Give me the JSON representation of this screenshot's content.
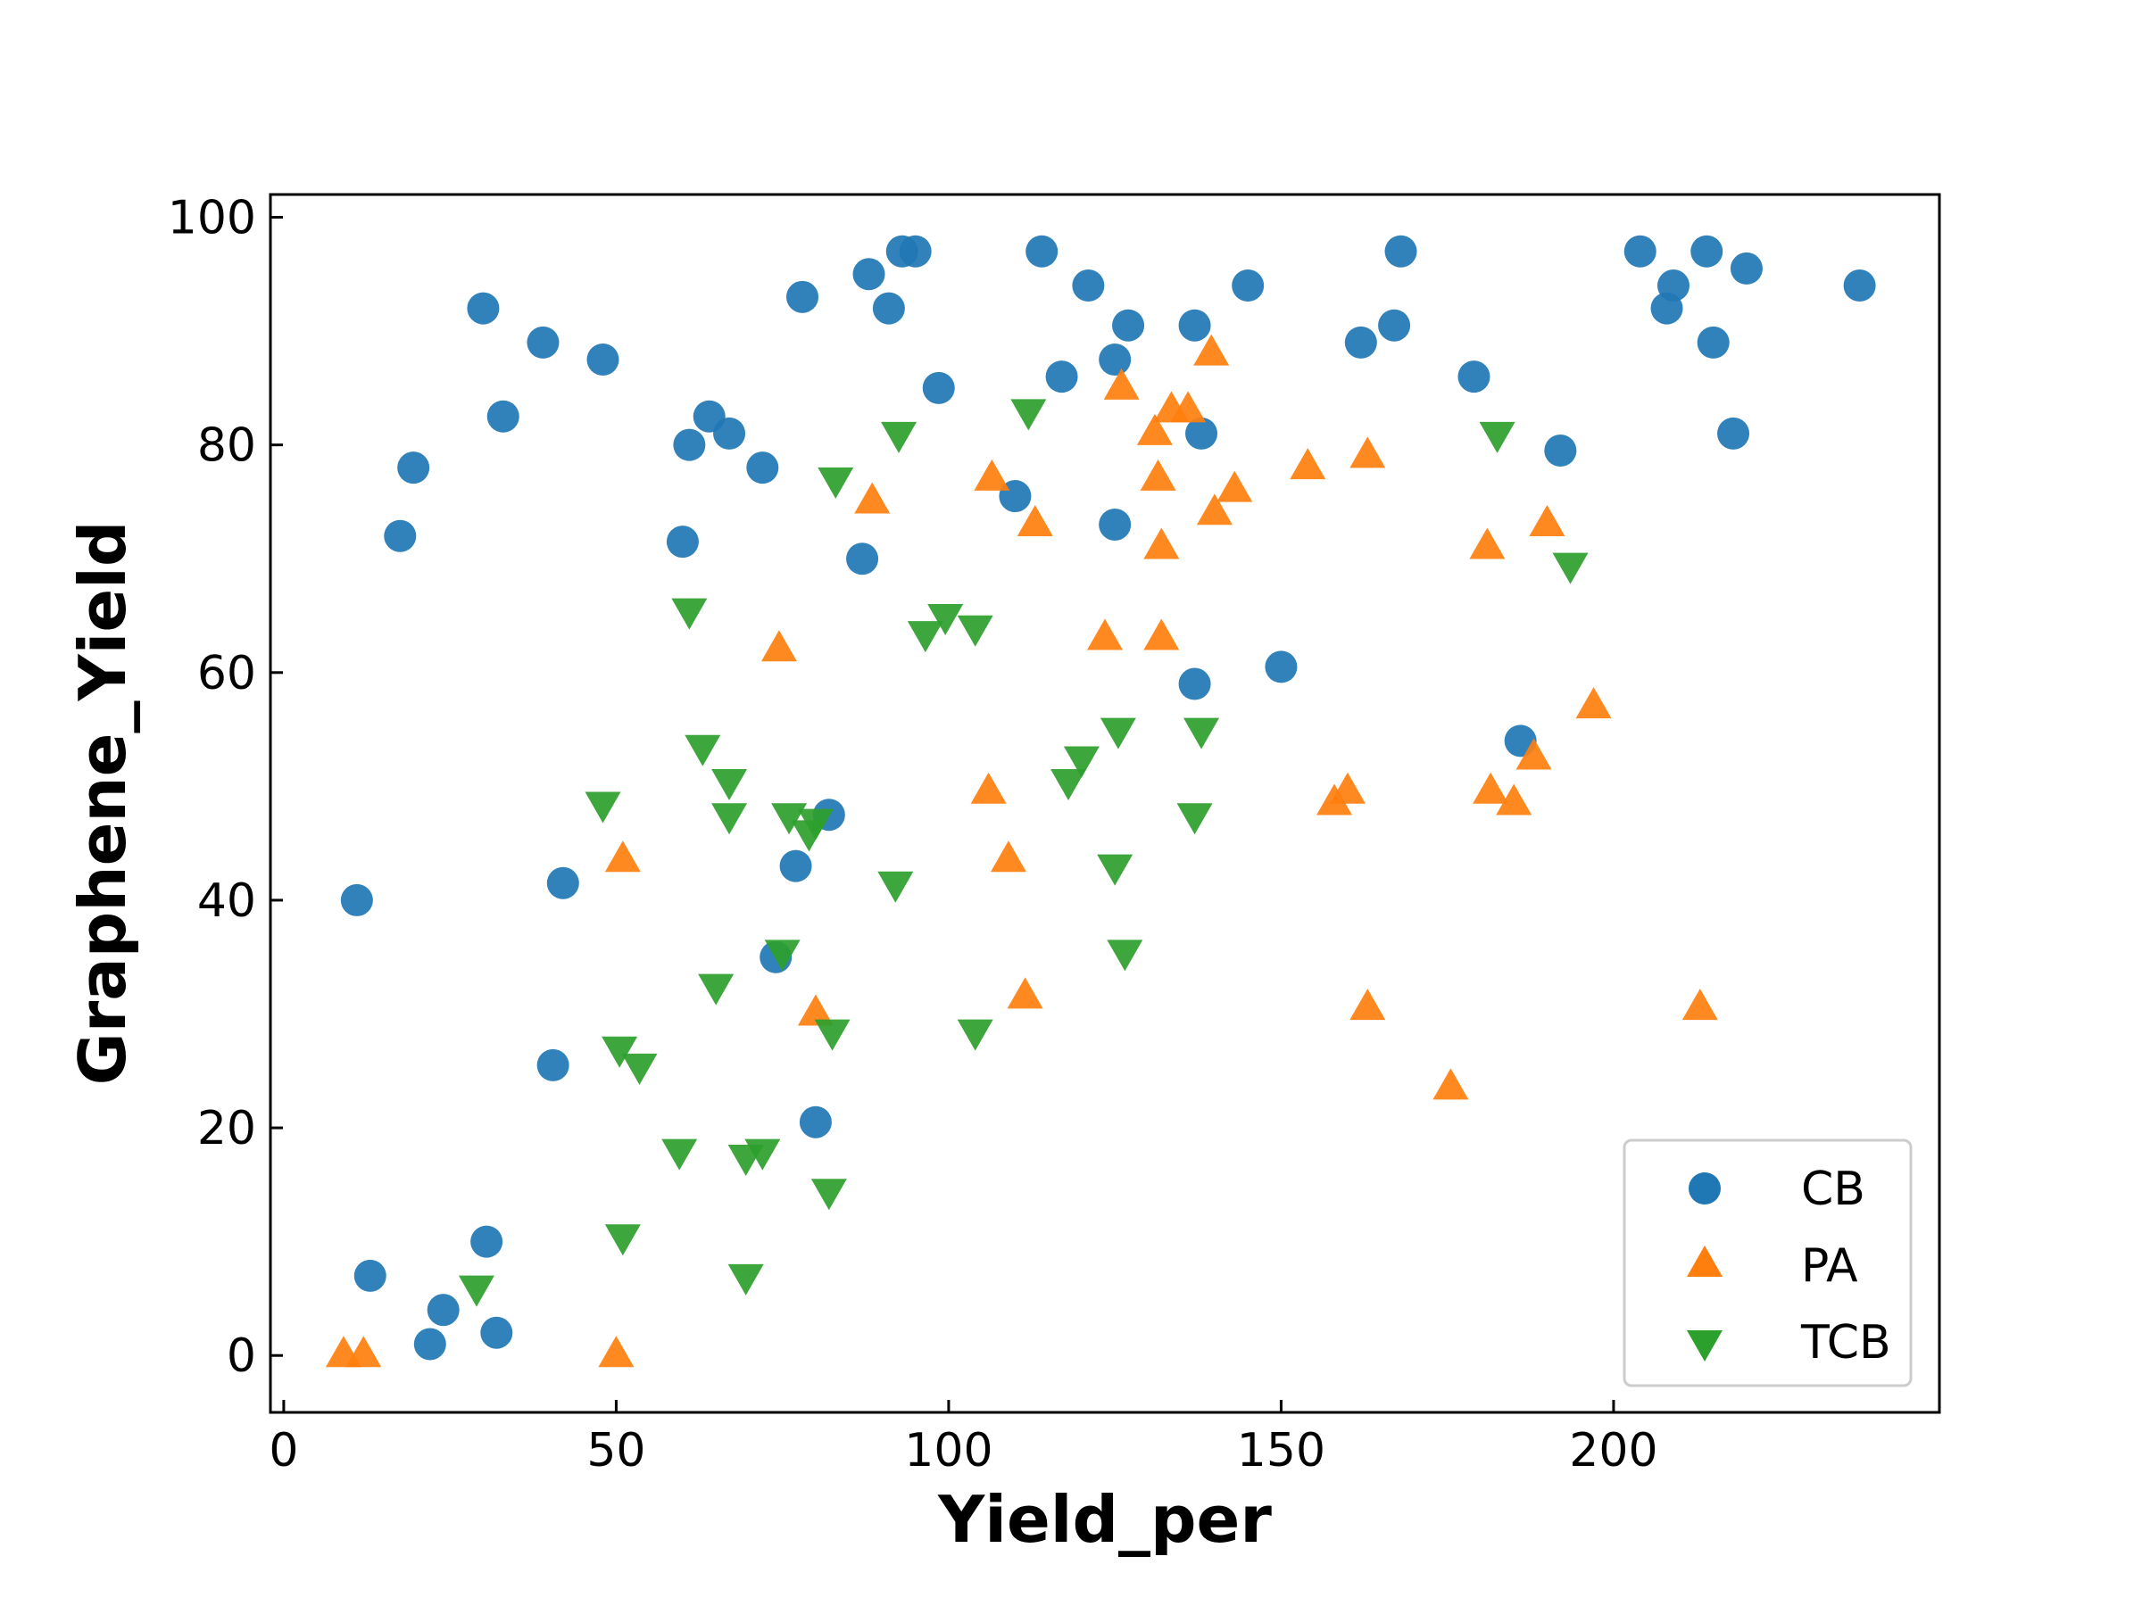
{
  "chart_data": {
    "type": "scatter",
    "title": "",
    "xlabel": "Yield_per",
    "ylabel": "Graphene_Yield",
    "xlim": [
      -2,
      249
    ],
    "ylim": [
      -5,
      102
    ],
    "xticks": [
      0,
      50,
      100,
      150,
      200
    ],
    "yticks": [
      0,
      20,
      40,
      60,
      80,
      100
    ],
    "grid": false,
    "legend_position": "lower-right",
    "series": [
      {
        "name": "CB",
        "color": "#1f77b4",
        "marker": "circle",
        "points": [
          [
            11,
            40
          ],
          [
            13,
            7
          ],
          [
            17.5,
            72
          ],
          [
            19.5,
            78
          ],
          [
            22,
            1
          ],
          [
            24,
            4
          ],
          [
            30,
            92
          ],
          [
            30.5,
            10
          ],
          [
            32,
            2
          ],
          [
            33,
            82.5
          ],
          [
            39,
            89
          ],
          [
            40.5,
            25.5
          ],
          [
            42,
            41.5
          ],
          [
            48,
            87.5
          ],
          [
            60,
            71.5
          ],
          [
            61,
            80
          ],
          [
            64,
            82.5
          ],
          [
            67,
            81
          ],
          [
            72,
            78
          ],
          [
            74,
            35
          ],
          [
            77,
            43
          ],
          [
            78,
            93
          ],
          [
            80,
            20.5
          ],
          [
            82,
            47.5
          ],
          [
            87,
            70
          ],
          [
            88,
            95
          ],
          [
            91,
            92
          ],
          [
            93,
            97
          ],
          [
            95,
            97
          ],
          [
            98.5,
            85
          ],
          [
            110,
            75.5
          ],
          [
            114,
            97
          ],
          [
            117,
            86
          ],
          [
            121,
            94
          ],
          [
            125,
            73
          ],
          [
            125,
            87.5
          ],
          [
            127,
            90.5
          ],
          [
            137,
            59
          ],
          [
            137,
            90.5
          ],
          [
            138,
            81
          ],
          [
            145,
            94
          ],
          [
            150,
            60.5
          ],
          [
            162,
            89
          ],
          [
            167,
            90.5
          ],
          [
            168,
            97
          ],
          [
            179,
            86
          ],
          [
            186,
            54
          ],
          [
            192,
            79.5
          ],
          [
            204,
            97
          ],
          [
            208,
            92
          ],
          [
            209,
            94
          ],
          [
            214,
            97
          ],
          [
            215,
            89
          ],
          [
            218,
            81
          ],
          [
            220,
            95.5
          ],
          [
            237,
            94
          ]
        ]
      },
      {
        "name": "PA",
        "color": "#ff7f0e",
        "marker": "triangle-up",
        "points": [
          [
            9,
            0
          ],
          [
            12,
            0
          ],
          [
            50,
            0
          ],
          [
            51,
            43.5
          ],
          [
            74.5,
            62
          ],
          [
            80,
            30
          ],
          [
            88.5,
            75
          ],
          [
            106,
            49.5
          ],
          [
            106.5,
            77
          ],
          [
            109,
            43.5
          ],
          [
            111.5,
            31.5
          ],
          [
            113,
            73
          ],
          [
            123.5,
            63
          ],
          [
            126,
            85
          ],
          [
            131,
            81
          ],
          [
            131.5,
            77
          ],
          [
            132,
            71
          ],
          [
            132,
            63
          ],
          [
            133.5,
            83
          ],
          [
            136,
            83
          ],
          [
            139.5,
            88
          ],
          [
            140,
            74
          ],
          [
            143,
            76
          ],
          [
            154,
            78
          ],
          [
            158,
            48.5
          ],
          [
            160,
            49.5
          ],
          [
            163,
            79
          ],
          [
            163,
            30.5
          ],
          [
            175.5,
            23.5
          ],
          [
            181,
            71
          ],
          [
            181.5,
            49.5
          ],
          [
            185,
            48.5
          ],
          [
            188,
            52.5
          ],
          [
            190,
            73
          ],
          [
            197,
            57
          ],
          [
            213,
            30.5
          ]
        ]
      },
      {
        "name": "TCB",
        "color": "#2ca02c",
        "marker": "triangle-down",
        "points": [
          [
            29,
            6
          ],
          [
            48,
            48.5
          ],
          [
            50.5,
            27
          ],
          [
            51,
            10.5
          ],
          [
            53.5,
            25.5
          ],
          [
            59.5,
            18
          ],
          [
            61,
            65.5
          ],
          [
            63,
            53.5
          ],
          [
            65,
            32.5
          ],
          [
            67,
            50.5
          ],
          [
            67,
            47.5
          ],
          [
            69.5,
            17.5
          ],
          [
            69.5,
            7
          ],
          [
            72,
            18
          ],
          [
            75,
            35.5
          ],
          [
            76,
            47.5
          ],
          [
            79,
            46
          ],
          [
            80,
            47
          ],
          [
            82,
            14.5
          ],
          [
            82.5,
            28.5
          ],
          [
            83,
            77
          ],
          [
            92,
            41.5
          ],
          [
            92.5,
            81
          ],
          [
            96.5,
            63.5
          ],
          [
            99.5,
            65
          ],
          [
            104,
            64
          ],
          [
            104,
            28.5
          ],
          [
            112,
            83
          ],
          [
            118,
            50.5
          ],
          [
            120,
            52.5
          ],
          [
            125,
            43
          ],
          [
            125.5,
            55
          ],
          [
            126.5,
            35.5
          ],
          [
            137,
            47.5
          ],
          [
            138,
            55
          ],
          [
            182.5,
            81
          ],
          [
            193.5,
            69.5
          ]
        ]
      }
    ]
  }
}
